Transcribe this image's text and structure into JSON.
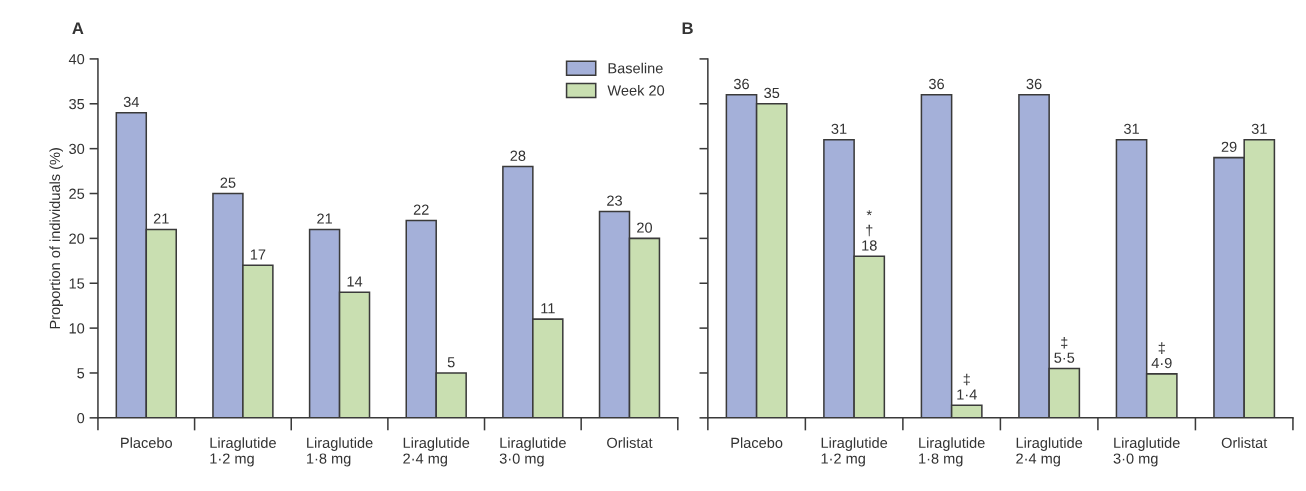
{
  "chart_data": [
    {
      "type": "bar",
      "title": "A",
      "ylabel": "Proportion of individuals (%)",
      "categories": [
        "Placebo",
        "Liraglutide\n1·2 mg",
        "Liraglutide\n1·8 mg",
        "Liraglutide\n2·4 mg",
        "Liraglutide\n3·0 mg",
        "Orlistat"
      ],
      "series": [
        {
          "name": "Baseline",
          "color": "#a4b0d9",
          "values": [
            34,
            25,
            21,
            22,
            28,
            23
          ]
        },
        {
          "name": "Week 20",
          "color": "#c9dfb1",
          "values": [
            21,
            17,
            14,
            5,
            11,
            20
          ]
        }
      ],
      "ylim": [
        0,
        40
      ],
      "yticks": [
        0,
        5,
        10,
        15,
        20,
        25,
        30,
        35,
        40
      ],
      "data_labels": true,
      "legend": "top right"
    },
    {
      "type": "bar",
      "title": "B",
      "categories": [
        "Placebo",
        "Liraglutide\n1·2 mg",
        "Liraglutide\n1·8 mg",
        "Liraglutide\n2·4 mg",
        "Liraglutide\n3·0 mg",
        "Orlistat"
      ],
      "series": [
        {
          "color": "#a4b0d9",
          "values": [
            36,
            31,
            36,
            36,
            31,
            29
          ],
          "value_labels": [
            "36",
            "31",
            "36",
            "36",
            "31",
            "29"
          ]
        },
        {
          "color": "#c9dfb1",
          "values": [
            35,
            18,
            1.4,
            5.5,
            4.9,
            31
          ],
          "value_labels": [
            "35",
            "*\n†\n18",
            "‡\n1·4",
            "‡\n5·5",
            "‡\n4·9",
            "31"
          ]
        }
      ],
      "ylim": [
        0,
        40
      ],
      "yticks": [
        0,
        5,
        10,
        15,
        20,
        25,
        30,
        35,
        40
      ],
      "tick_labels": "x"
    }
  ]
}
